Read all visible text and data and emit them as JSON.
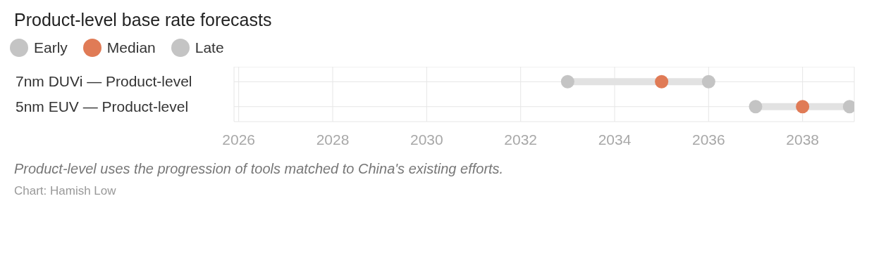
{
  "chart_data": {
    "type": "scatter",
    "orientation": "horizontal",
    "title": "Product-level base rate forecasts",
    "categories": [
      "7nm DUVi — Product-level",
      "5nm EUV — Product-level"
    ],
    "series": [
      {
        "name": "Early",
        "color": "#c4c4c4",
        "values": [
          2033,
          2037
        ]
      },
      {
        "name": "Median",
        "color": "#e07b56",
        "values": [
          2035,
          2038
        ]
      },
      {
        "name": "Late",
        "color": "#c4c4c4",
        "values": [
          2036,
          2039
        ]
      }
    ],
    "xlim": [
      2025.9,
      2039.1
    ],
    "xticks": [
      2026,
      2028,
      2030,
      2032,
      2034,
      2036,
      2038
    ],
    "grid": true,
    "legend": "top left",
    "marker": "circle",
    "annotations": [
      "Product-level uses the progression of tools matched to China's existing efforts.",
      "Chart: Hamish Low"
    ]
  }
}
